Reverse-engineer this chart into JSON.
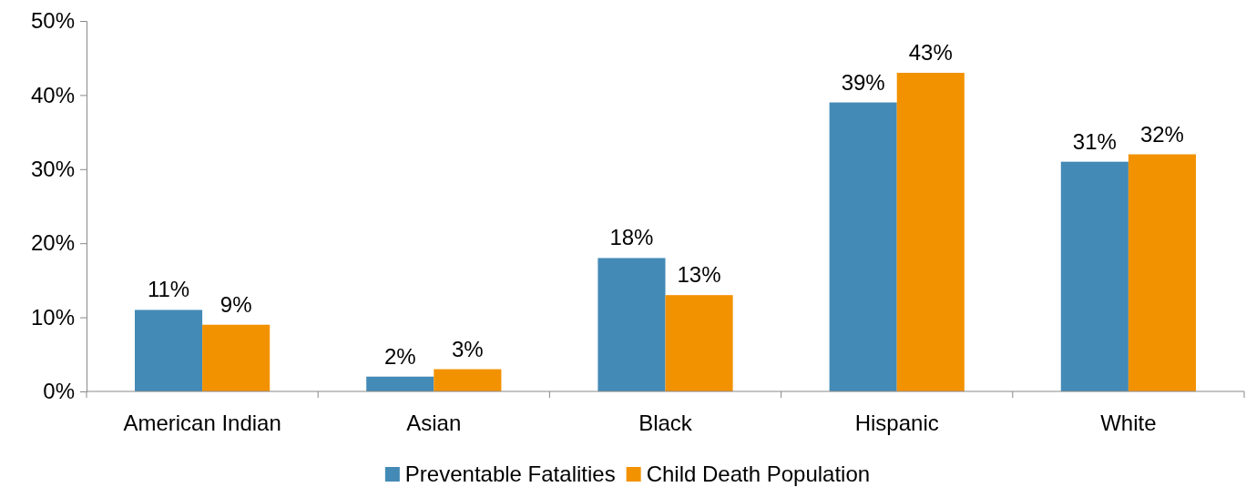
{
  "chart_data": {
    "type": "bar",
    "categories": [
      "American Indian",
      "Asian",
      "Black",
      "Hispanic",
      "White"
    ],
    "series": [
      {
        "name": "Preventable Fatalities",
        "color": "#448ab6",
        "values": [
          11,
          2,
          18,
          39,
          31
        ],
        "value_labels": [
          "11%",
          "2%",
          "18%",
          "39%",
          "31%"
        ]
      },
      {
        "name": "Child Death Population",
        "color": "#f39200",
        "values": [
          9,
          3,
          13,
          43,
          32
        ],
        "value_labels": [
          "9%",
          "3%",
          "13%",
          "43%",
          "32%"
        ]
      }
    ],
    "ylim": [
      0,
      50
    ],
    "yticks": [
      {
        "value": 0,
        "label": "0%"
      },
      {
        "value": 10,
        "label": "10%"
      },
      {
        "value": 20,
        "label": "20%"
      },
      {
        "value": 30,
        "label": "30%"
      },
      {
        "value": 40,
        "label": "40%"
      },
      {
        "value": 50,
        "label": "50%"
      }
    ],
    "grid": false,
    "legend": "bottom"
  }
}
